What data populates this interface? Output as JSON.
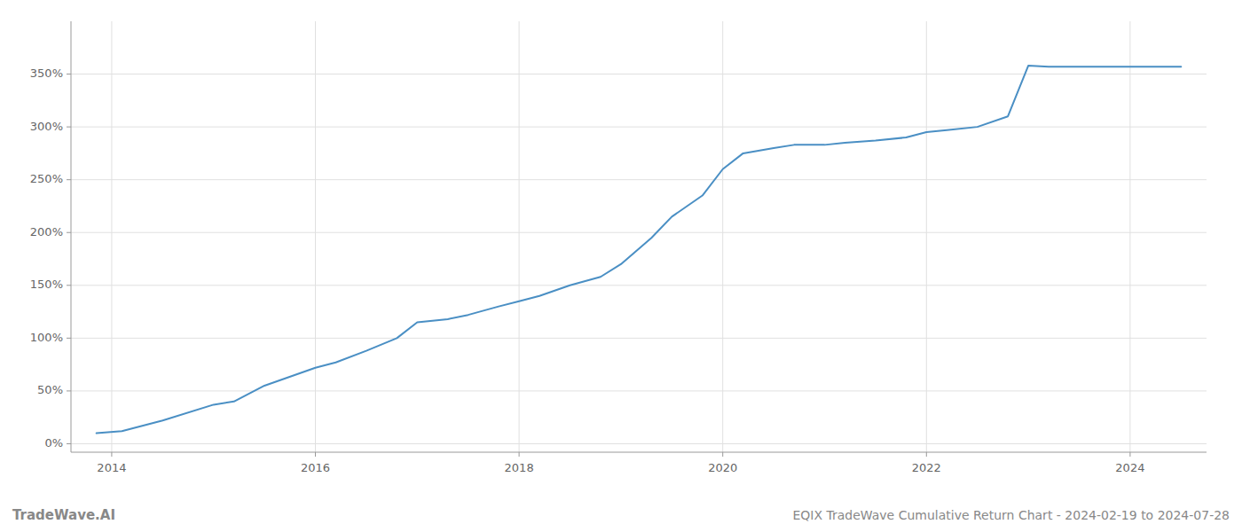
{
  "chart_data": {
    "type": "line",
    "title": "EQIX TradeWave Cumulative Return Chart - 2024-02-19 to 2024-07-28",
    "annotations": [
      "TradeWave.AI"
    ],
    "x": [
      2013.85,
      2014.1,
      2014.5,
      2015.0,
      2015.2,
      2015.5,
      2016.0,
      2016.2,
      2016.5,
      2016.8,
      2017.0,
      2017.3,
      2017.5,
      2017.8,
      2018.0,
      2018.2,
      2018.5,
      2018.8,
      2019.0,
      2019.3,
      2019.5,
      2019.8,
      2020.0,
      2020.2,
      2020.5,
      2020.7,
      2021.0,
      2021.2,
      2021.5,
      2021.8,
      2022.0,
      2022.2,
      2022.5,
      2022.8,
      2023.0,
      2023.2,
      2023.5,
      2023.8,
      2024.0,
      2024.2,
      2024.5
    ],
    "values": [
      10,
      12,
      22,
      37,
      40,
      55,
      72,
      77,
      88,
      100,
      115,
      118,
      122,
      130,
      135,
      140,
      150,
      158,
      170,
      195,
      215,
      235,
      260,
      275,
      280,
      283,
      283,
      285,
      287,
      290,
      295,
      297,
      300,
      310,
      358,
      357,
      357,
      357,
      357,
      357,
      357
    ],
    "color": "#4a8fc4",
    "xlim": [
      2013.6,
      2024.75
    ],
    "ylim": [
      -8,
      400
    ],
    "xticks": [
      2014,
      2016,
      2018,
      2020,
      2022,
      2024
    ],
    "yticks": [
      {
        "value": 0,
        "label": "0%"
      },
      {
        "value": 50,
        "label": "50%"
      },
      {
        "value": 100,
        "label": "100%"
      },
      {
        "value": 150,
        "label": "150%"
      },
      {
        "value": 200,
        "label": "200%"
      },
      {
        "value": 250,
        "label": "250%"
      },
      {
        "value": 300,
        "label": "300%"
      },
      {
        "value": 350,
        "label": "350%"
      }
    ],
    "grid": true
  }
}
